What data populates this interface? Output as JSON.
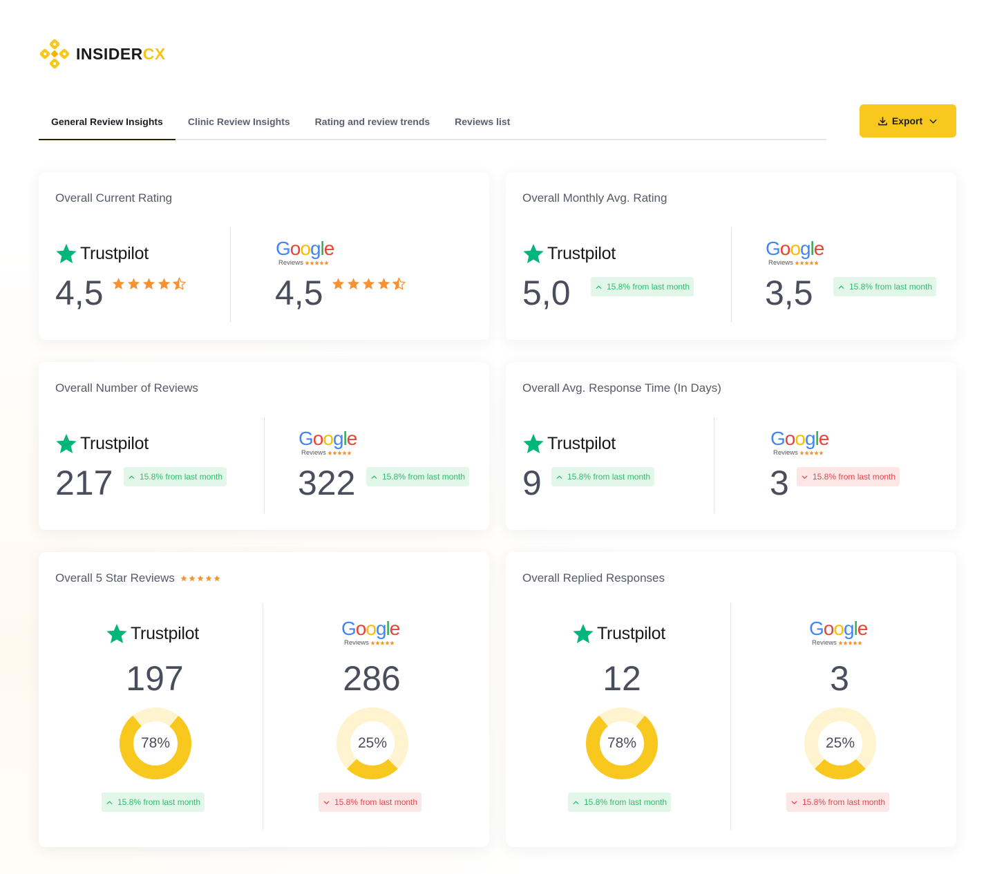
{
  "brand": {
    "name_main": "INSIDER",
    "name_accent": "CX"
  },
  "tabs": [
    {
      "label": "General Review Insights",
      "active": true
    },
    {
      "label": "Clinic Review Insights",
      "active": false
    },
    {
      "label": "Rating and review trends",
      "active": false
    },
    {
      "label": "Reviews list",
      "active": false
    }
  ],
  "export": {
    "label": "Export",
    "icon": "download-icon"
  },
  "platforms": {
    "trustpilot": "Trustpilot",
    "google_word": "Google",
    "google_sub": "Reviews"
  },
  "colors": {
    "accent": "#f8c81e",
    "star": "#f79232",
    "trustpilot": "#00b67a",
    "up": "#2dbf6a",
    "down": "#e5484d"
  },
  "cards": {
    "current_rating": {
      "title": "Overall Current Rating",
      "trustpilot": {
        "value": "4,5",
        "stars": 4.5
      },
      "google": {
        "value": "4,5",
        "stars": 4.5
      }
    },
    "monthly_avg": {
      "title": "Overall Monthly Avg. Rating",
      "trustpilot": {
        "value": "5,0",
        "change": "15.8% from last month",
        "trend": "up"
      },
      "google": {
        "value": "3,5",
        "change": "15.8% from last month",
        "trend": "up"
      }
    },
    "num_reviews": {
      "title": "Overall Number of Reviews",
      "trustpilot": {
        "value": "217",
        "change": "15.8% from last month",
        "trend": "up"
      },
      "google": {
        "value": "322",
        "change": "15.8% from last month",
        "trend": "up"
      }
    },
    "response_time": {
      "title": "Overall Avg. Response Time (In Days)",
      "trustpilot": {
        "value": "9",
        "change": "15.8% from last month",
        "trend": "up"
      },
      "google": {
        "value": "3",
        "change": "15.8% from last month",
        "trend": "down"
      }
    },
    "five_star": {
      "title": "Overall 5 Star Reviews",
      "trustpilot": {
        "value": "197",
        "percent": 78,
        "percent_label": "78%",
        "change": "15.8% from last month",
        "trend": "up"
      },
      "google": {
        "value": "286",
        "percent": 25,
        "percent_label": "25%",
        "change": "15.8% from last month",
        "trend": "down"
      }
    },
    "replied": {
      "title": "Overall Replied Responses",
      "trustpilot": {
        "value": "12",
        "percent": 78,
        "percent_label": "78%",
        "change": "15.8% from last month",
        "trend": "up"
      },
      "google": {
        "value": "3",
        "percent": 25,
        "percent_label": "25%",
        "change": "15.8% from last month",
        "trend": "down"
      }
    }
  }
}
